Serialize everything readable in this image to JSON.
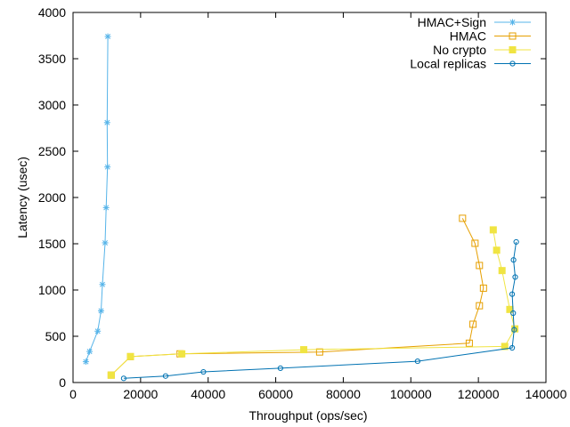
{
  "chart_data": {
    "type": "line",
    "xlabel": "Throughput (ops/sec)",
    "ylabel": "Latency (usec)",
    "xlim": [
      0,
      140000
    ],
    "ylim": [
      0,
      4000
    ],
    "x_ticks": [
      0,
      20000,
      40000,
      60000,
      80000,
      100000,
      120000,
      140000
    ],
    "y_ticks": [
      0,
      500,
      1000,
      1500,
      2000,
      2500,
      3000,
      3500,
      4000
    ],
    "x_tick_labels": [
      "0",
      "20000",
      "40000",
      "60000",
      "80000",
      "100000",
      "120000",
      "140000"
    ],
    "y_tick_labels": [
      "0",
      "500",
      "1000",
      "1500",
      "2000",
      "2500",
      "3000",
      "3500",
      "4000"
    ],
    "grid": false,
    "legend_position": "top-right",
    "series": [
      {
        "name": "HMAC+Sign",
        "color": "#56b4e9",
        "marker": "asterisk",
        "points": [
          [
            3800,
            225
          ],
          [
            4900,
            335
          ],
          [
            7300,
            555
          ],
          [
            8300,
            775
          ],
          [
            8700,
            1060
          ],
          [
            9500,
            1510
          ],
          [
            9800,
            1890
          ],
          [
            10200,
            2330
          ],
          [
            10100,
            2810
          ],
          [
            10300,
            3740
          ]
        ]
      },
      {
        "name": "HMAC",
        "color": "#e69f00",
        "marker": "open-square",
        "points": [
          [
            11300,
            80
          ],
          [
            17000,
            280
          ],
          [
            31700,
            310
          ],
          [
            73000,
            330
          ],
          [
            117300,
            425
          ],
          [
            118400,
            630
          ],
          [
            120300,
            830
          ],
          [
            121500,
            1020
          ],
          [
            120300,
            1265
          ],
          [
            119000,
            1505
          ],
          [
            115300,
            1775
          ]
        ]
      },
      {
        "name": "No crypto",
        "color": "#f0e442",
        "marker": "filled-square",
        "points": [
          [
            11300,
            80
          ],
          [
            17000,
            280
          ],
          [
            32200,
            310
          ],
          [
            68300,
            355
          ],
          [
            127800,
            390
          ],
          [
            130800,
            580
          ],
          [
            129300,
            790
          ],
          [
            127000,
            1210
          ],
          [
            125400,
            1430
          ],
          [
            124400,
            1650
          ]
        ]
      },
      {
        "name": "Local replicas",
        "color": "#0072b2",
        "marker": "open-circle",
        "points": [
          [
            15000,
            45
          ],
          [
            27400,
            70
          ],
          [
            38600,
            115
          ],
          [
            61400,
            155
          ],
          [
            102000,
            230
          ],
          [
            130000,
            375
          ],
          [
            130600,
            570
          ],
          [
            130300,
            750
          ],
          [
            130000,
            955
          ],
          [
            130900,
            1140
          ],
          [
            130400,
            1325
          ],
          [
            131200,
            1520
          ]
        ]
      }
    ]
  }
}
